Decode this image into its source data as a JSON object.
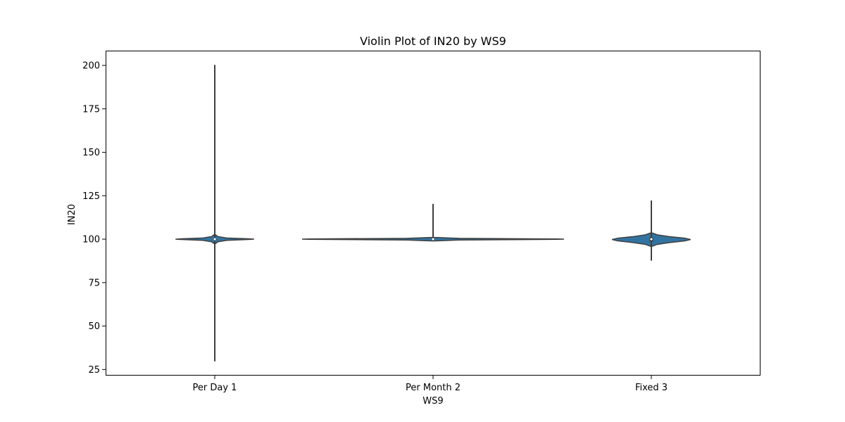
{
  "chart_data": {
    "type": "violin",
    "title": "Violin Plot of IN20 by WS9",
    "xlabel": "WS9",
    "ylabel": "IN20",
    "categories": [
      "Per Day 1",
      "Per Month 2",
      "Fixed 3"
    ],
    "yticks": [
      25,
      50,
      75,
      100,
      125,
      150,
      175,
      200
    ],
    "ytick_labels": [
      "25",
      "50",
      "75",
      "100",
      "125",
      "150",
      "175",
      "200"
    ],
    "ylim": [
      21.5,
      208.5
    ],
    "grid": false,
    "legend": "none",
    "fill_color": "#3274a1",
    "edge_color": "#3f3f3f",
    "violins": [
      {
        "category": "Per Day 1",
        "min": 30,
        "max": 200,
        "q1": 99.5,
        "median": 100,
        "q3": 100.5,
        "density": [
          [
            97.5,
            0.02
          ],
          [
            98.5,
            0.08
          ],
          [
            99.3,
            0.3
          ],
          [
            99.8,
            0.85
          ],
          [
            100.0,
            1.0
          ],
          [
            100.2,
            0.85
          ],
          [
            100.7,
            0.3
          ],
          [
            101.5,
            0.08
          ],
          [
            102.5,
            0.02
          ]
        ]
      },
      {
        "category": "Per Month 2",
        "min": 99,
        "max": 120,
        "q1": 99.7,
        "median": 100,
        "q3": 100.3,
        "density": [
          [
            99.0,
            0.02
          ],
          [
            99.5,
            0.2
          ],
          [
            99.9,
            0.95
          ],
          [
            100.0,
            1.0
          ],
          [
            100.1,
            0.95
          ],
          [
            100.5,
            0.2
          ],
          [
            101.0,
            0.02
          ]
        ]
      },
      {
        "category": "Fixed 3",
        "min": 88,
        "max": 122,
        "q1": 98.5,
        "median": 100,
        "q3": 101,
        "density": [
          [
            96.0,
            0.03
          ],
          [
            97.0,
            0.15
          ],
          [
            98.0,
            0.45
          ],
          [
            99.0,
            0.85
          ],
          [
            99.8,
            1.0
          ],
          [
            100.6,
            0.85
          ],
          [
            101.5,
            0.45
          ],
          [
            102.5,
            0.15
          ],
          [
            103.5,
            0.03
          ]
        ]
      }
    ],
    "max_halfwidths_fraction": [
      0.36,
      1.2,
      0.36
    ]
  }
}
